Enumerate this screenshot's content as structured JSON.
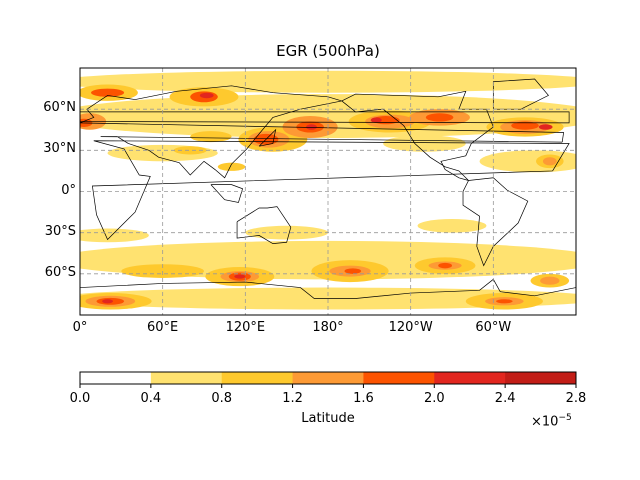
{
  "title": "EGR (500hPa)",
  "chart_data": {
    "type": "heatmap",
    "projection": "PlateCarree, central longitude 180",
    "xticks": [
      "0°",
      "60°E",
      "120°E",
      "180°",
      "120°W",
      "60°W"
    ],
    "yticks": [
      "60°N",
      "30°N",
      "0°",
      "30°S",
      "60°S"
    ],
    "grid": true,
    "coastlines": true,
    "colorbar": {
      "label": "Latitude",
      "levels": [
        0.0,
        0.4,
        0.8,
        1.2,
        1.6,
        2.0,
        2.4,
        2.8
      ],
      "tick_labels": [
        "0.0",
        "0.4",
        "0.8",
        "1.2",
        "1.6",
        "2.0",
        "2.4",
        "2.8"
      ],
      "offset_text": "×10",
      "offset_exponent": "−5",
      "colors": [
        "#ffffff",
        "#ffe270",
        "#fec92e",
        "#fd9a35",
        "#fc5300",
        "#e2261f",
        "#c21d17"
      ],
      "placement": "bottom"
    }
  }
}
